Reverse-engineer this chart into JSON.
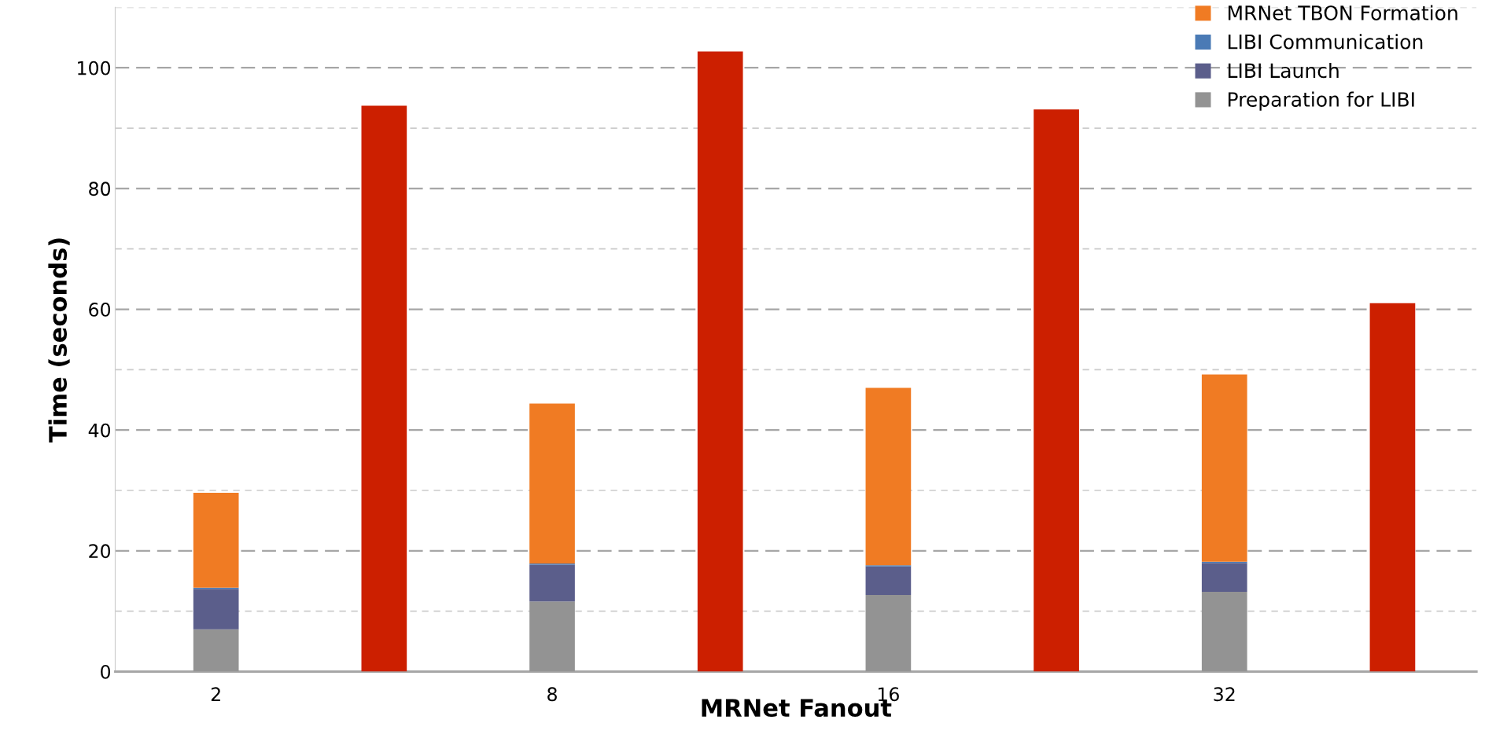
{
  "chart_data": {
    "type": "bar",
    "stacked": true,
    "xlabel": "MRNet Fanout",
    "ylabel": "Time (seconds)",
    "categories": [
      "2",
      null,
      "8",
      null,
      "16",
      null,
      "32",
      null
    ],
    "series": [
      {
        "name": "Preparation for LIBI",
        "color": "#939393",
        "values": [
          7.0,
          null,
          11.6,
          null,
          12.7,
          null,
          13.2,
          null
        ]
      },
      {
        "name": "LIBI Launch",
        "color": "#5b5e8b",
        "values": [
          6.7,
          null,
          6.1,
          null,
          4.7,
          null,
          4.8,
          null
        ]
      },
      {
        "name": "LIBI Communication",
        "color": "#4a7ab5",
        "values": [
          0.2,
          null,
          0.2,
          null,
          0.2,
          null,
          0.2,
          null
        ]
      },
      {
        "name": "MRNet TBON Formation",
        "color": "#f07b23",
        "values": [
          15.7,
          null,
          26.5,
          null,
          29.4,
          null,
          31.0,
          null
        ]
      },
      {
        "color": "#cc1f00",
        "values": [
          null,
          93.7,
          null,
          102.7,
          null,
          93.1,
          null,
          61.0
        ]
      }
    ],
    "ylim": [
      0,
      110
    ],
    "yticks": [
      0,
      {
        "value": 10,
        "label": null
      },
      20,
      {
        "value": 30,
        "label": null
      },
      40,
      {
        "value": 50,
        "label": null
      },
      60,
      {
        "value": 70,
        "label": null
      },
      80,
      {
        "value": 90,
        "label": null
      },
      100,
      {
        "value": 110,
        "label": null
      }
    ],
    "grid": "y",
    "legend": "top right"
  }
}
